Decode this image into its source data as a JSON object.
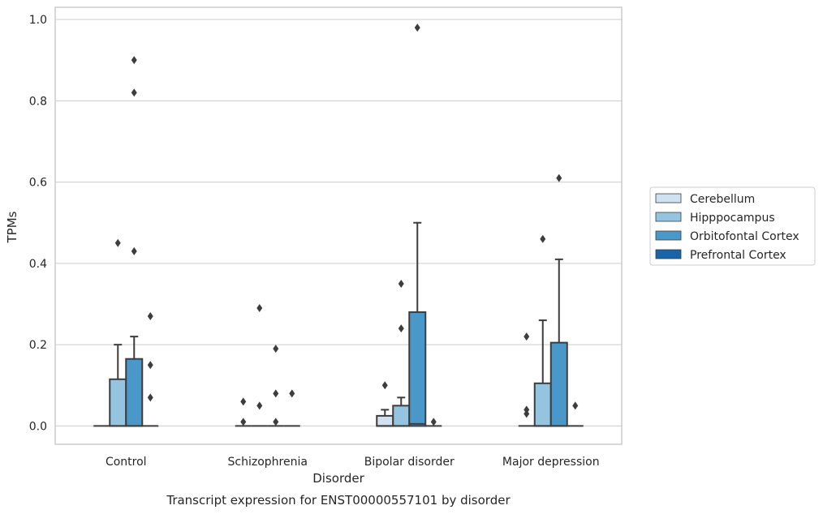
{
  "caption": "Transcript expression for ENST00000557101 by disorder",
  "colors": {
    "Cerebellum": "#d0e1f2",
    "Hipppocampus": "#94c4df",
    "Orbitofontal Cortex": "#4a98c9",
    "Prefrontal Cortex": "#1764ab",
    "grid": "#cccccc",
    "axis_frame": "#cccccc",
    "stroke": "#3d3d3d"
  },
  "chart_data": {
    "type": "box",
    "xlabel": "Disorder",
    "ylabel": "TPMs",
    "ylim": [
      -0.045,
      1.03
    ],
    "yticks": [
      0.0,
      0.2,
      0.4,
      0.6,
      0.8,
      1.0
    ],
    "ytick_labels": [
      "0.0",
      "0.2",
      "0.4",
      "0.6",
      "0.8",
      "1.0"
    ],
    "grid": true,
    "legend_position": "right",
    "categories": [
      "Control",
      "Schizophrenia",
      "Bipolar disorder",
      "Major depression"
    ],
    "hue_order": [
      "Cerebellum",
      "Hipppocampus",
      "Orbitofontal Cortex",
      "Prefrontal Cortex"
    ],
    "boxes": [
      {
        "category": "Control",
        "series": "Cerebellum",
        "min": 0,
        "q1": 0,
        "median": 0,
        "q3": 0,
        "max": 0,
        "outliers": []
      },
      {
        "category": "Control",
        "series": "Hipppocampus",
        "min": 0,
        "q1": 0,
        "median": 0,
        "q3": 0.115,
        "max": 0.2,
        "outliers": [
          0.45
        ]
      },
      {
        "category": "Control",
        "series": "Orbitofontal Cortex",
        "min": 0,
        "q1": 0,
        "median": 0,
        "q3": 0.165,
        "max": 0.22,
        "outliers": [
          0.9,
          0.82,
          0.43
        ]
      },
      {
        "category": "Control",
        "series": "Prefrontal Cortex",
        "min": 0,
        "q1": 0,
        "median": 0,
        "q3": 0,
        "max": 0,
        "outliers": [
          0.27,
          0.15,
          0.07
        ]
      },
      {
        "category": "Schizophrenia",
        "series": "Cerebellum",
        "min": 0,
        "q1": 0,
        "median": 0,
        "q3": 0,
        "max": 0,
        "outliers": [
          0.06,
          0.01
        ]
      },
      {
        "category": "Schizophrenia",
        "series": "Hipppocampus",
        "min": 0,
        "q1": 0,
        "median": 0,
        "q3": 0,
        "max": 0,
        "outliers": [
          0.29,
          0.05
        ]
      },
      {
        "category": "Schizophrenia",
        "series": "Orbitofontal Cortex",
        "min": 0,
        "q1": 0,
        "median": 0,
        "q3": 0,
        "max": 0,
        "outliers": [
          0.19,
          0.08,
          0.01
        ]
      },
      {
        "category": "Schizophrenia",
        "series": "Prefrontal Cortex",
        "min": 0,
        "q1": 0,
        "median": 0,
        "q3": 0,
        "max": 0,
        "outliers": [
          0.08
        ]
      },
      {
        "category": "Bipolar disorder",
        "series": "Cerebellum",
        "min": 0,
        "q1": 0,
        "median": 0,
        "q3": 0.025,
        "max": 0.04,
        "outliers": [
          0.1
        ]
      },
      {
        "category": "Bipolar disorder",
        "series": "Hipppocampus",
        "min": 0,
        "q1": 0,
        "median": 0,
        "q3": 0.05,
        "max": 0.07,
        "outliers": [
          0.35,
          0.24
        ]
      },
      {
        "category": "Bipolar disorder",
        "series": "Orbitofontal Cortex",
        "min": 0,
        "q1": 0,
        "median": 0.005,
        "q3": 0.28,
        "max": 0.5,
        "outliers": [
          0.98
        ]
      },
      {
        "category": "Bipolar disorder",
        "series": "Prefrontal Cortex",
        "min": 0,
        "q1": 0,
        "median": 0,
        "q3": 0,
        "max": 0,
        "outliers": [
          0.01
        ]
      },
      {
        "category": "Major depression",
        "series": "Cerebellum",
        "min": 0,
        "q1": 0,
        "median": 0,
        "q3": 0,
        "max": 0,
        "outliers": [
          0.22,
          0.04,
          0.03
        ]
      },
      {
        "category": "Major depression",
        "series": "Hipppocampus",
        "min": 0,
        "q1": 0,
        "median": 0,
        "q3": 0.105,
        "max": 0.26,
        "outliers": [
          0.46
        ]
      },
      {
        "category": "Major depression",
        "series": "Orbitofontal Cortex",
        "min": 0,
        "q1": 0,
        "median": 0,
        "q3": 0.205,
        "max": 0.41,
        "outliers": [
          0.61
        ]
      },
      {
        "category": "Major depression",
        "series": "Prefrontal Cortex",
        "min": 0,
        "q1": 0,
        "median": 0,
        "q3": 0,
        "max": 0,
        "outliers": [
          0.05
        ]
      }
    ]
  }
}
